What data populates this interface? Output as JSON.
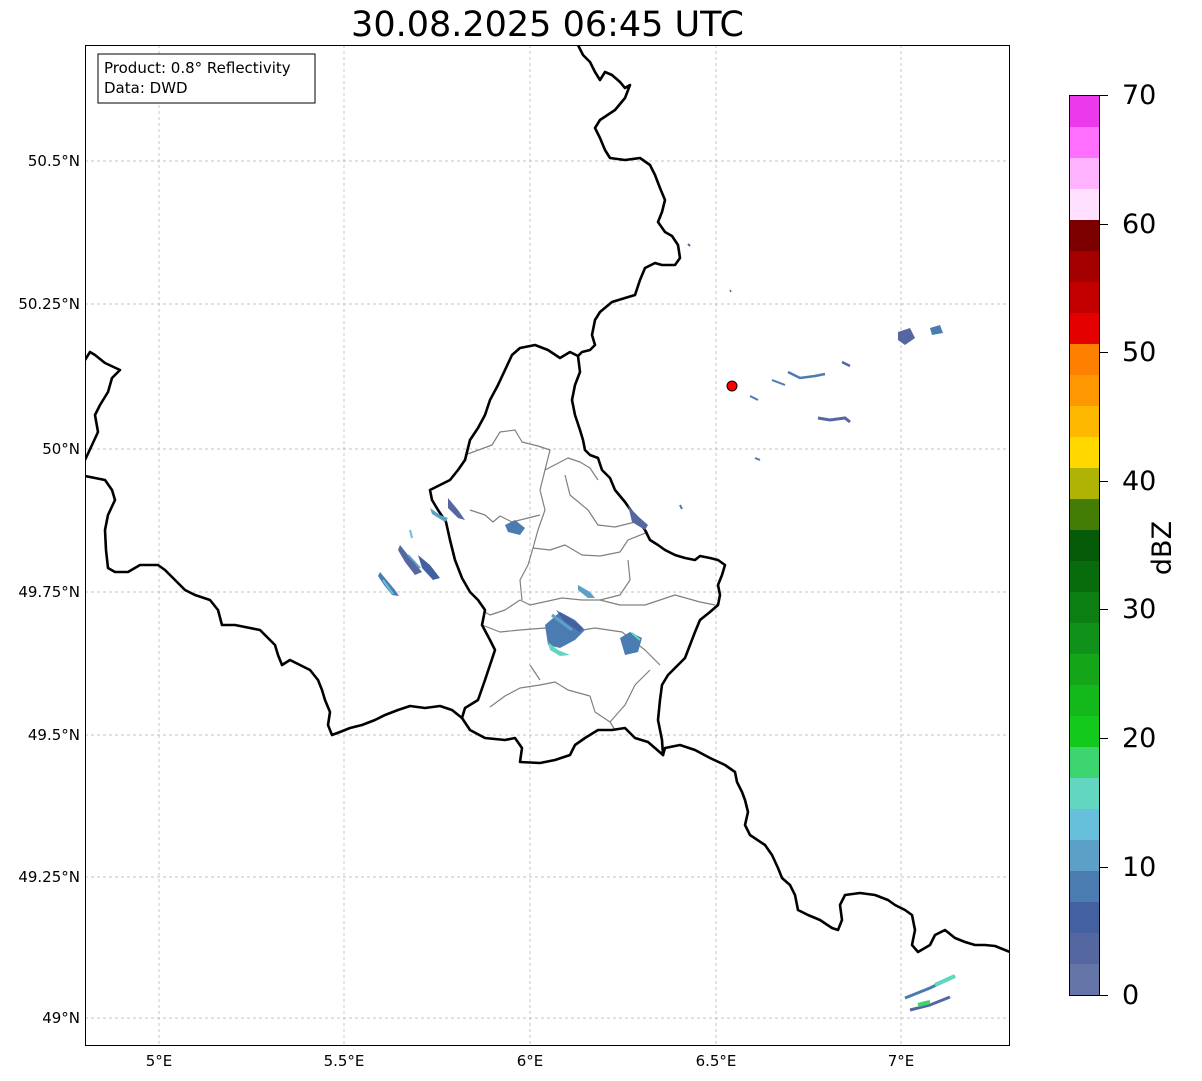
{
  "title": "30.08.2025 06:45 UTC",
  "info_box": {
    "product": "Product: 0.8° Reflectivity",
    "data": "Data: DWD"
  },
  "axes": {
    "lat_labels": [
      "50.5°N",
      "50.25°N",
      "50°N",
      "49.75°N",
      "49.5°N",
      "49.25°N",
      "49°N"
    ],
    "lon_labels": [
      "5°E",
      "5.5°E",
      "6°E",
      "6.5°E",
      "7°E"
    ]
  },
  "colorbar": {
    "label": "dBZ",
    "tick_labels": [
      "0",
      "10",
      "20",
      "30",
      "40",
      "50",
      "60",
      "70"
    ],
    "min": 0,
    "max": 70,
    "step": 2.5,
    "colors": [
      "#6575a8",
      "#5467a0",
      "#4360a1",
      "#4a7bb1",
      "#5c9fc7",
      "#66c0db",
      "#62d6c0",
      "#3dd56f",
      "#13c91b",
      "#13b91b",
      "#14a518",
      "#10921a",
      "#0b7f12",
      "#086c0c",
      "#055b07",
      "#447d05",
      "#afb303",
      "#ffd800",
      "#ffb800",
      "#ff9800",
      "#ff7f00",
      "#e50000",
      "#c30000",
      "#a50000",
      "#7d0000",
      "#ffe0ff",
      "#ffb3ff",
      "#ff6fff",
      "#ec39ec"
    ]
  },
  "radar_site": {
    "name": "radar-site",
    "color": "#ff0000"
  },
  "colors": {
    "country_border": "#000000",
    "district_border": "#808080",
    "grid": "#b0b0b0"
  }
}
